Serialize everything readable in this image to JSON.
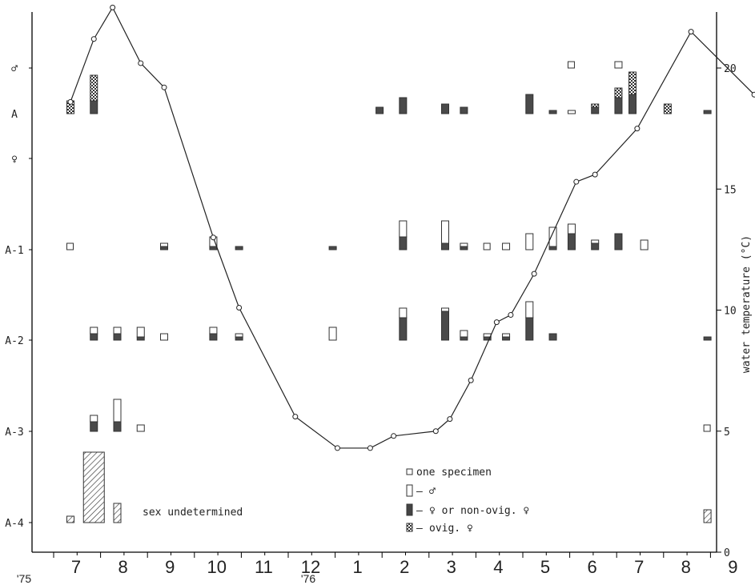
{
  "chart_data": {
    "type": "bar",
    "x_ticks": [
      "7",
      "8",
      "9",
      "10",
      "11",
      "12",
      "1",
      "2",
      "3",
      "4",
      "5",
      "6",
      "7",
      "8",
      "9"
    ],
    "year_labels": [
      "'75",
      "'76"
    ],
    "stage_labels": [
      "♂",
      "A",
      "♀",
      "A-1",
      "A-2",
      "A-3",
      "A-4"
    ],
    "ylabel_right": "water temperature (°C)",
    "right_ticks": [
      0,
      5,
      10,
      15,
      20
    ],
    "ylim_right": [
      0,
      23
    ],
    "note": "sex undetermined",
    "legend": {
      "one": "one specimen",
      "male": "♂",
      "female": "♀ or non-ovig. ♀",
      "ovig": "ovig. ♀"
    },
    "temperature": {
      "x": [
        7.4,
        7.9,
        8.3,
        8.9,
        9.4,
        10.45,
        11.0,
        12.2,
        13.1,
        13.8,
        14.3,
        15.2,
        15.5,
        15.95,
        16.5,
        16.8,
        17.3,
        18.2,
        18.6,
        19.5,
        20.65,
        22.0
      ],
      "y": [
        18.6,
        21.2,
        22.5,
        20.2,
        19.2,
        13.0,
        10.1,
        5.6,
        4.3,
        4.3,
        4.8,
        5.0,
        5.5,
        7.1,
        9.5,
        9.8,
        11.5,
        15.3,
        15.6,
        17.5,
        21.5,
        18.9
      ]
    },
    "counts": [
      {
        "x": 7.4,
        "stage": "A-1",
        "male": 0,
        "female": 0,
        "ovig": 0,
        "one": 1
      },
      {
        "x": 7.4,
        "stage": "A",
        "male": 0,
        "female": 0,
        "ovig": 1
      },
      {
        "x": 7.9,
        "stage": "A",
        "male": 0,
        "female": 1,
        "ovig": 2
      },
      {
        "x": 7.9,
        "stage": "A-2",
        "male": 0.5,
        "female": 0.5,
        "ovig": 0
      },
      {
        "x": 7.9,
        "stage": "A-3",
        "male": 0.5,
        "female": 0.75,
        "ovig": 0
      },
      {
        "x": 8.4,
        "stage": "A-2",
        "male": 0.5,
        "female": 0.5,
        "ovig": 0
      },
      {
        "x": 8.4,
        "stage": "A-3",
        "male": 1.75,
        "female": 0.75,
        "ovig": 0
      },
      {
        "x": 8.9,
        "stage": "A-2",
        "male": 0.75,
        "female": 0.25,
        "ovig": 0
      },
      {
        "x": 8.9,
        "stage": "A-3",
        "male": 0.5,
        "female": 0,
        "ovig": 0
      },
      {
        "x": 9.4,
        "stage": "A-1",
        "male": 0.25,
        "female": 0.25,
        "ovig": 0
      },
      {
        "x": 9.4,
        "stage": "A-2",
        "male": 0.5,
        "female": 0,
        "ovig": 0
      },
      {
        "x": 10.45,
        "stage": "A-1",
        "male": 0.75,
        "female": 0.25,
        "ovig": 0
      },
      {
        "x": 10.45,
        "stage": "A-2",
        "male": 0.5,
        "female": 0.5,
        "ovig": 0
      },
      {
        "x": 11.0,
        "stage": "A-1",
        "male": 0,
        "female": 0.25,
        "ovig": 0
      },
      {
        "x": 11.0,
        "stage": "A-2",
        "male": 0.25,
        "female": 0.25,
        "ovig": 0
      },
      {
        "x": 13.0,
        "stage": "A-1",
        "male": 0,
        "female": 0.25,
        "ovig": 0
      },
      {
        "x": 13.0,
        "stage": "A-2",
        "male": 1,
        "female": 0,
        "ovig": 0
      },
      {
        "x": 14.0,
        "stage": "A",
        "male": 0,
        "female": 0.5,
        "ovig": 0
      },
      {
        "x": 14.5,
        "stage": "A",
        "male": 0,
        "female": 1.25,
        "ovig": 0
      },
      {
        "x": 14.5,
        "stage": "A-1",
        "male": 1.25,
        "female": 1,
        "ovig": 0
      },
      {
        "x": 14.5,
        "stage": "A-2",
        "male": 0.75,
        "female": 1.75,
        "ovig": 0
      },
      {
        "x": 15.4,
        "stage": "A",
        "male": 0,
        "female": 0.75,
        "ovig": 0
      },
      {
        "x": 15.4,
        "stage": "A-1",
        "male": 1.75,
        "female": 0.5,
        "ovig": 0
      },
      {
        "x": 15.4,
        "stage": "A-2",
        "male": 0.25,
        "female": 2.25,
        "ovig": 0
      },
      {
        "x": 15.8,
        "stage": "A",
        "male": 0,
        "female": 0.5,
        "ovig": 0
      },
      {
        "x": 15.8,
        "stage": "A-1",
        "male": 0.25,
        "female": 0.25,
        "ovig": 0
      },
      {
        "x": 15.8,
        "stage": "A-2",
        "male": 0.5,
        "female": 0.25,
        "ovig": 0
      },
      {
        "x": 16.3,
        "stage": "A-1",
        "male": 0,
        "female": 0,
        "ovig": 0,
        "one": 1
      },
      {
        "x": 16.3,
        "stage": "A-2",
        "male": 0.25,
        "female": 0.25,
        "ovig": 0
      },
      {
        "x": 16.7,
        "stage": "A-1",
        "male": 0.5,
        "female": 0,
        "ovig": 0
      },
      {
        "x": 16.7,
        "stage": "A-2",
        "male": 0.25,
        "female": 0.25,
        "ovig": 0
      },
      {
        "x": 17.2,
        "stage": "A",
        "male": 0,
        "female": 1.5,
        "ovig": 0
      },
      {
        "x": 17.2,
        "stage": "A-1",
        "male": 1.25,
        "female": 0,
        "ovig": 0
      },
      {
        "x": 17.2,
        "stage": "A-2",
        "male": 1.25,
        "female": 1.75,
        "ovig": 0
      },
      {
        "x": 17.7,
        "stage": "A",
        "male": 0,
        "female": 0.25,
        "ovig": 0
      },
      {
        "x": 17.7,
        "stage": "A-1",
        "male": 1.5,
        "female": 0.25,
        "ovig": 0
      },
      {
        "x": 17.7,
        "stage": "A-2",
        "male": 0,
        "female": 0.5,
        "ovig": 0
      },
      {
        "x": 18.1,
        "stage": "♂",
        "male": 0,
        "female": 0,
        "ovig": 0,
        "one": 1
      },
      {
        "x": 18.1,
        "stage": "A",
        "male": 0.25,
        "female": 0,
        "ovig": 0
      },
      {
        "x": 18.1,
        "stage": "A-1",
        "male": 0.75,
        "female": 1.25,
        "ovig": 0
      },
      {
        "x": 18.6,
        "stage": "A",
        "male": 0,
        "female": 0.5,
        "ovig": 0.25
      },
      {
        "x": 18.6,
        "stage": "A-1",
        "male": 0.25,
        "female": 0.5,
        "ovig": 0
      },
      {
        "x": 19.1,
        "stage": "♂",
        "male": 0.5,
        "female": 0,
        "ovig": 0
      },
      {
        "x": 19.1,
        "stage": "A",
        "male": 0,
        "female": 1.25,
        "ovig": 0.75
      },
      {
        "x": 19.1,
        "stage": "A-1",
        "male": 0,
        "female": 1.25,
        "ovig": 0
      },
      {
        "x": 19.4,
        "stage": "A",
        "male": 0,
        "female": 1.5,
        "ovig": 1.75
      },
      {
        "x": 19.65,
        "stage": "A-1",
        "male": 0.75,
        "female": 0,
        "ovig": 0
      },
      {
        "x": 20.15,
        "stage": "A",
        "male": 0,
        "female": 0,
        "ovig": 0.75
      },
      {
        "x": 21.0,
        "stage": "A",
        "male": 0,
        "female": 0.25,
        "ovig": 0
      },
      {
        "x": 21.0,
        "stage": "A-2",
        "male": 0,
        "female": 0.25,
        "ovig": 0
      },
      {
        "x": 21.0,
        "stage": "A-3",
        "male": 0,
        "female": 0,
        "ovig": 0,
        "one": 1
      }
    ],
    "undetermined": [
      {
        "x": 7.4,
        "count": 0.5
      },
      {
        "x": 7.9,
        "count": 5.5
      },
      {
        "x": 8.4,
        "count": 1.5
      },
      {
        "x": 21.0,
        "count": 1
      }
    ]
  }
}
